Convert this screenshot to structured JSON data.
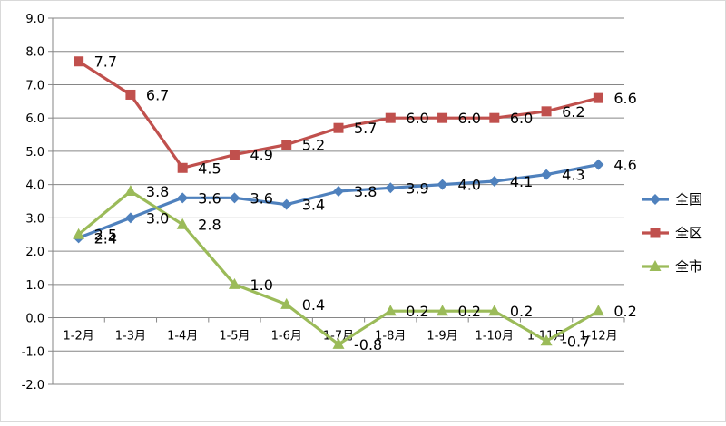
{
  "chart_data": {
    "type": "line",
    "categories": [
      "1-2月",
      "1-3月",
      "1-4月",
      "1-5月",
      "1-6月",
      "1-7月",
      "1-8月",
      "1-9月",
      "1-10月",
      "1-11月",
      "1-12月"
    ],
    "ylim": [
      -2.0,
      9.0
    ],
    "ytick_step": 1.0,
    "y_ticks": [
      "-2.0",
      "-1.0",
      "0.0",
      "1.0",
      "2.0",
      "3.0",
      "4.0",
      "5.0",
      "6.0",
      "7.0",
      "8.0",
      "9.0"
    ],
    "grid": true,
    "legend_position": "right",
    "series": [
      {
        "name": "全国",
        "color": "#4F81BD",
        "marker": "diamond",
        "values": [
          2.4,
          3.0,
          3.6,
          3.6,
          3.4,
          3.8,
          3.9,
          4.0,
          4.1,
          4.3,
          4.6
        ],
        "labels": [
          "2.4",
          "3.0",
          "3.6",
          "3.6",
          "3.4",
          "3.8",
          "3.9",
          "4.0",
          "4.1",
          "4.3",
          "4.6"
        ]
      },
      {
        "name": "全区",
        "color": "#C0504D",
        "marker": "square",
        "values": [
          7.7,
          6.7,
          4.5,
          4.9,
          5.2,
          5.7,
          6.0,
          6.0,
          6.0,
          6.2,
          6.6
        ],
        "labels": [
          "7.7",
          "6.7",
          "4.5",
          "4.9",
          "5.2",
          "5.7",
          "6.0",
          "6.0",
          "6.0",
          "6.2",
          "6.6"
        ]
      },
      {
        "name": "全市",
        "color": "#9BBB59",
        "marker": "triangle",
        "values": [
          2.5,
          3.8,
          2.8,
          1.0,
          0.4,
          -0.8,
          0.2,
          0.2,
          0.2,
          -0.7,
          0.2
        ],
        "labels": [
          "2.5",
          "3.8",
          "2.8",
          "1.0",
          "0.4",
          "-0.8",
          "0.2",
          "0.2",
          "0.2",
          "-0.7",
          "0.2"
        ]
      }
    ]
  }
}
